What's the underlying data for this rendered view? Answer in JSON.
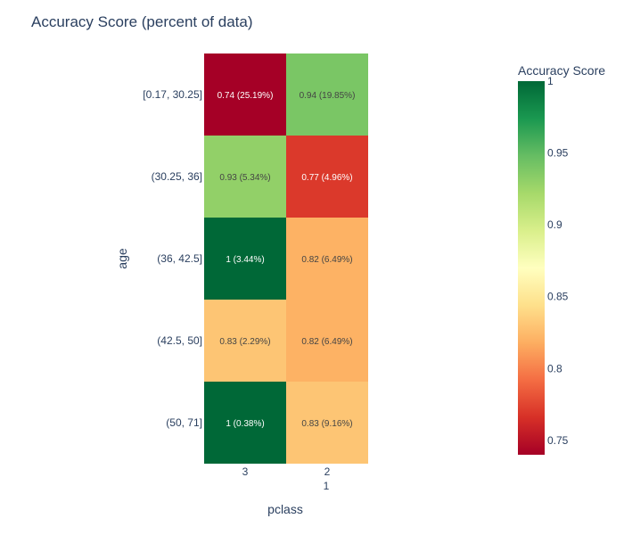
{
  "chart_data": {
    "type": "heatmap",
    "title": "Accuracy Score (percent of data)",
    "xlabel": "pclass",
    "ylabel": "age",
    "x_categories": [
      "3",
      "2"
    ],
    "x_secondary_label": "1",
    "y_categories": [
      "[0.17, 30.25]",
      "(30.25, 36]",
      "(36, 42.5]",
      "(42.5, 50]",
      "(50, 71]"
    ],
    "values": [
      [
        0.74,
        0.94
      ],
      [
        0.93,
        0.77
      ],
      [
        1.0,
        0.82
      ],
      [
        0.83,
        0.82
      ],
      [
        1.0,
        0.83
      ]
    ],
    "cell_labels": [
      [
        "0.74 (25.19%)",
        "0.94 (19.85%)"
      ],
      [
        "0.93 (5.34%)",
        "0.77 (4.96%)"
      ],
      [
        "1 (3.44%)",
        "0.82 (6.49%)"
      ],
      [
        "0.83 (2.29%)",
        "0.82 (6.49%)"
      ],
      [
        "1 (0.38%)",
        "0.83 (9.16%)"
      ]
    ],
    "colorbar": {
      "title": "Accuracy Score",
      "colorscale": "RdYlGn",
      "zmin": 0.74,
      "zmax": 1.0,
      "tick_values": [
        1,
        0.95,
        0.9,
        0.85,
        0.8,
        0.75
      ],
      "tick_labels": [
        "1",
        "0.95",
        "0.9",
        "0.85",
        "0.8",
        "0.75"
      ]
    }
  }
}
